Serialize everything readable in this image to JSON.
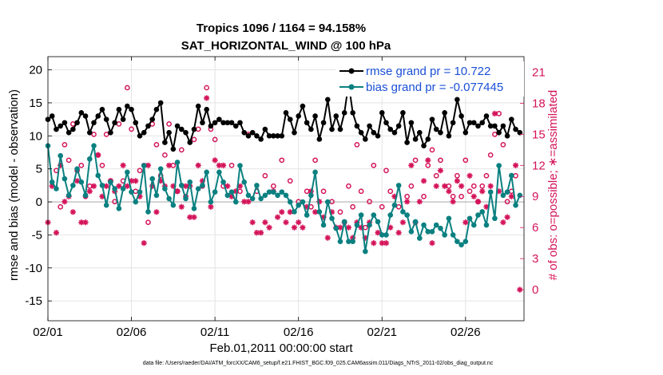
{
  "chart_data": {
    "type": "line",
    "title": "Tropics 1096 / 1164 = 94.158%",
    "subtitle": "SAT_HORIZONTAL_WIND @ 100 hPa",
    "xlabel": "Feb.01,2011 00:00:00 start",
    "ylabel": "rmse and bias (model - observation)",
    "y2label": "# of obs: o=possible; ∗=assimilated",
    "footnote": "data file: /Users/raeder/DAI/ATM_forcXX/CAM6_setup/f.e21.FHIST_BGC.f09_025.CAM6assim.011/Diags_NTrS_2011-02/obs_diag_output.nc",
    "xlim": [
      1,
      29.5
    ],
    "ylim": [
      -18,
      22
    ],
    "y2lim": [
      -3,
      22.5
    ],
    "x_ticks": [
      1,
      6,
      11,
      16,
      21,
      26
    ],
    "x_tick_labels": [
      "02/01",
      "02/06",
      "02/11",
      "02/16",
      "02/21",
      "02/26"
    ],
    "y_ticks": [
      -15,
      -10,
      -5,
      0,
      5,
      10,
      15,
      20
    ],
    "y2_ticks": [
      0,
      3,
      6,
      9,
      12,
      15,
      18,
      21
    ],
    "grid": true,
    "legend_location": "top-right",
    "colors": {
      "rmse": "#000000",
      "bias": "#0b8080",
      "obs": "#d4145a",
      "zero": "#b0b0b0",
      "legend_text": "#1a4fd6"
    },
    "x": [
      1.0,
      1.25,
      1.5,
      1.75,
      2.0,
      2.25,
      2.5,
      2.75,
      3.0,
      3.25,
      3.5,
      3.75,
      4.0,
      4.25,
      4.5,
      4.75,
      5.0,
      5.25,
      5.5,
      5.75,
      6.0,
      6.25,
      6.5,
      6.75,
      7.0,
      7.25,
      7.5,
      7.75,
      8.0,
      8.25,
      8.5,
      8.75,
      9.0,
      9.25,
      9.5,
      9.75,
      10.0,
      10.25,
      10.5,
      10.75,
      11.0,
      11.25,
      11.5,
      11.75,
      12.0,
      12.25,
      12.5,
      12.75,
      13.0,
      13.25,
      13.5,
      13.75,
      14.0,
      14.25,
      14.5,
      14.75,
      15.0,
      15.25,
      15.5,
      15.75,
      16.0,
      16.25,
      16.5,
      16.75,
      17.0,
      17.25,
      17.5,
      17.75,
      18.0,
      18.25,
      18.5,
      18.75,
      19.0,
      19.25,
      19.5,
      19.75,
      20.0,
      20.25,
      20.5,
      20.75,
      21.0,
      21.25,
      21.5,
      21.75,
      22.0,
      22.25,
      22.5,
      22.75,
      23.0,
      23.25,
      23.5,
      23.75,
      24.0,
      24.25,
      24.5,
      24.75,
      25.0,
      25.25,
      25.5,
      25.75,
      26.0,
      26.25,
      26.5,
      26.75,
      27.0,
      27.25,
      27.5,
      27.75,
      28.0,
      28.25,
      28.5,
      28.75,
      29.0,
      29.25
    ],
    "series": [
      {
        "name": "rmse grand pr = 10.722",
        "marker": "filled-circle",
        "values": [
          12.5,
          13.0,
          11.0,
          11.5,
          12.0,
          10.5,
          11.0,
          12.0,
          13.5,
          13.0,
          10.5,
          12.0,
          13.0,
          14.0,
          12.5,
          10.5,
          12.0,
          14.0,
          12.5,
          14.5,
          14.0,
          12.0,
          10.0,
          10.5,
          11.5,
          12.5,
          14.0,
          15.0,
          9.0,
          10.5,
          8.0,
          11.5,
          11.0,
          10.5,
          9.0,
          11.0,
          14.5,
          12.0,
          14.0,
          11.5,
          12.0,
          12.5,
          12.0,
          12.0,
          12.0,
          11.5,
          12.0,
          10.5,
          10.0,
          10.5,
          10.0,
          9.5,
          11.0,
          10.0,
          10.0,
          10.0,
          10.0,
          13.5,
          12.5,
          10.5,
          13.0,
          14.5,
          12.0,
          11.0,
          13.0,
          9.5,
          12.0,
          15.5,
          11.0,
          13.0,
          11.0,
          13.5,
          18.0,
          13.5,
          11.5,
          10.5,
          9.5,
          11.5,
          10.5,
          10.0,
          13.5,
          12.0,
          11.0,
          10.5,
          11.5,
          13.5,
          9.0,
          12.0,
          9.5,
          10.5,
          8.5,
          9.5,
          12.5,
          11.0,
          10.5,
          13.5,
          10.0,
          12.0,
          15.5,
          13.0,
          10.5,
          12.0,
          12.0,
          11.5,
          12.0,
          13.0,
          11.5,
          11.5,
          10.5,
          11.5,
          10.0,
          12.5,
          11.0,
          10.5
        ]
      },
      {
        "name": "bias grand pr = -0.077445",
        "marker": "filled-circle",
        "values": [
          8.5,
          3.0,
          2.0,
          7.0,
          3.5,
          1.0,
          2.5,
          5.0,
          3.0,
          1.0,
          6.5,
          8.5,
          4.0,
          2.5,
          -0.5,
          3.0,
          2.0,
          -1.0,
          2.0,
          4.5,
          1.5,
          0.0,
          1.5,
          5.5,
          -1.5,
          3.5,
          1.0,
          5.0,
          2.0,
          0.5,
          -0.5,
          6.0,
          2.5,
          0.5,
          3.0,
          -1.0,
          2.0,
          2.5,
          4.5,
          0.0,
          1.5,
          4.5,
          3.0,
          1.0,
          1.5,
          0.0,
          5.5,
          3.0,
          1.0,
          0.5,
          2.5,
          0.5,
          1.0,
          1.5,
          1.5,
          1.0,
          1.5,
          1.0,
          0.0,
          -1.5,
          -0.5,
          0.0,
          -2.0,
          1.0,
          4.5,
          -1.5,
          -3.5,
          0.0,
          -2.5,
          -4.0,
          -6.0,
          -3.0,
          -6.0,
          -6.0,
          -3.5,
          -2.0,
          -7.5,
          -3.5,
          -2.0,
          -3.0,
          -5.0,
          -5.0,
          -2.0,
          -0.5,
          2.5,
          -1.5,
          -2.0,
          -4.5,
          -3.0,
          -5.5,
          -3.5,
          -4.5,
          -4.5,
          -3.5,
          -4.0,
          -5.0,
          -2.5,
          -5.0,
          -6.0,
          -6.5,
          -6.0,
          -2.5,
          -3.5,
          -2.0,
          -1.5,
          -3.5,
          1.5,
          -2.5,
          5.5,
          1.0,
          1.5,
          4.0,
          -0.5,
          1.0
        ]
      }
    ],
    "obs_possible": {
      "marker": "open-circle",
      "axis": "right",
      "points": [
        [
          1.5,
          11.5
        ],
        [
          1.75,
          8.0
        ],
        [
          2.0,
          14.0
        ],
        [
          2.25,
          12.5
        ],
        [
          2.5,
          16.0
        ],
        [
          2.75,
          11.5
        ],
        [
          3.0,
          12.0
        ],
        [
          3.25,
          9.0
        ],
        [
          3.5,
          10.0
        ],
        [
          3.75,
          15.0
        ],
        [
          4.0,
          13.0
        ],
        [
          4.25,
          12.0
        ],
        [
          4.5,
          15.0
        ],
        [
          4.75,
          10.5
        ],
        [
          5.0,
          8.5
        ],
        [
          5.25,
          16.0
        ],
        [
          5.5,
          10.5
        ],
        [
          5.75,
          19.5
        ],
        [
          6.0,
          15.5
        ],
        [
          6.25,
          9.5
        ],
        [
          6.5,
          11.5
        ],
        [
          6.75,
          12.0
        ],
        [
          7.0,
          6.5
        ],
        [
          7.25,
          16.0
        ],
        [
          7.5,
          14.0
        ],
        [
          7.75,
          11.0
        ],
        [
          8.0,
          13.0
        ],
        [
          8.25,
          16.0
        ],
        [
          8.5,
          12.0
        ],
        [
          8.75,
          9.5
        ],
        [
          9.0,
          13.5
        ],
        [
          9.25,
          9.0
        ],
        [
          9.5,
          10.0
        ],
        [
          9.75,
          14.5
        ],
        [
          10.0,
          15.5
        ],
        [
          10.25,
          10.0
        ],
        [
          10.5,
          19.5
        ],
        [
          10.75,
          15.5
        ],
        [
          11.0,
          14.5
        ],
        [
          11.5,
          10.0
        ],
        [
          12.0,
          12.0
        ],
        [
          12.5,
          9.5
        ],
        [
          13.0,
          15.0
        ],
        [
          13.5,
          9.5
        ],
        [
          14.0,
          11.0
        ],
        [
          14.5,
          10.0
        ],
        [
          15.0,
          12.5
        ],
        [
          15.5,
          10.5
        ],
        [
          16.0,
          8.5
        ],
        [
          16.5,
          9.5
        ],
        [
          16.75,
          8.0
        ],
        [
          17.0,
          12.5
        ],
        [
          17.5,
          9.5
        ],
        [
          18.0,
          8.5
        ],
        [
          18.5,
          7.5
        ],
        [
          19.0,
          10.0
        ],
        [
          19.25,
          8.0
        ],
        [
          19.5,
          14.0
        ],
        [
          19.75,
          9.5
        ],
        [
          20.0,
          6.0
        ],
        [
          20.25,
          8.5
        ],
        [
          20.5,
          12.0
        ],
        [
          21.0,
          8.0
        ],
        [
          21.25,
          11.5
        ],
        [
          21.5,
          9.5
        ],
        [
          22.0,
          8.0
        ],
        [
          22.5,
          9.0
        ],
        [
          22.75,
          10.0
        ],
        [
          23.0,
          12.5
        ],
        [
          23.5,
          9.0
        ],
        [
          23.75,
          12.0
        ],
        [
          24.0,
          13.5
        ],
        [
          24.25,
          11.0
        ],
        [
          24.5,
          12.5
        ],
        [
          25.0,
          10.0
        ],
        [
          25.25,
          9.0
        ],
        [
          25.5,
          11.0
        ],
        [
          25.75,
          9.0
        ],
        [
          26.0,
          12.5
        ],
        [
          26.25,
          9.5
        ],
        [
          26.5,
          10.0
        ],
        [
          26.75,
          8.5
        ],
        [
          27.0,
          10.0
        ],
        [
          27.25,
          11.0
        ],
        [
          27.5,
          13.0
        ],
        [
          27.75,
          15.0
        ],
        [
          28.0,
          17.0
        ],
        [
          28.25,
          14.0
        ],
        [
          28.5,
          8.5
        ],
        [
          28.75,
          9.5
        ],
        [
          29.0,
          11.0
        ]
      ]
    },
    "obs_assimilated": {
      "marker": "asterisk",
      "axis": "right",
      "points": [
        [
          1.0,
          6.5
        ],
        [
          1.25,
          10.0
        ],
        [
          1.5,
          5.5
        ],
        [
          1.75,
          12.0
        ],
        [
          2.0,
          8.5
        ],
        [
          2.25,
          9.0
        ],
        [
          2.5,
          7.5
        ],
        [
          2.75,
          10.5
        ],
        [
          3.0,
          6.5
        ],
        [
          3.25,
          6.5
        ],
        [
          3.5,
          9.5
        ],
        [
          3.75,
          10.0
        ],
        [
          4.0,
          13.0
        ],
        [
          4.25,
          9.0
        ],
        [
          4.5,
          10.0
        ],
        [
          4.75,
          10.5
        ],
        [
          5.0,
          9.5
        ],
        [
          5.25,
          10.0
        ],
        [
          5.5,
          12.0
        ],
        [
          5.75,
          10.0
        ],
        [
          6.0,
          10.5
        ],
        [
          6.25,
          10.5
        ],
        [
          6.5,
          9.0
        ],
        [
          6.75,
          4.5
        ],
        [
          7.0,
          12.0
        ],
        [
          7.25,
          10.0
        ],
        [
          7.5,
          7.5
        ],
        [
          7.75,
          10.5
        ],
        [
          8.0,
          10.0
        ],
        [
          8.25,
          12.0
        ],
        [
          8.5,
          10.0
        ],
        [
          8.75,
          9.5
        ],
        [
          9.0,
          8.0
        ],
        [
          9.25,
          10.0
        ],
        [
          9.5,
          7.0
        ],
        [
          9.75,
          7.0
        ],
        [
          10.0,
          12.0
        ],
        [
          10.25,
          10.5
        ],
        [
          10.5,
          18.5
        ],
        [
          10.75,
          8.0
        ],
        [
          11.0,
          12.5
        ],
        [
          11.25,
          12.0
        ],
        [
          11.5,
          12.0
        ],
        [
          11.75,
          10.0
        ],
        [
          12.0,
          9.0
        ],
        [
          12.25,
          9.5
        ],
        [
          12.5,
          10.0
        ],
        [
          12.75,
          8.5
        ],
        [
          13.0,
          8.5
        ],
        [
          13.25,
          6.5
        ],
        [
          13.5,
          5.5
        ],
        [
          13.75,
          5.5
        ],
        [
          14.0,
          6.5
        ],
        [
          14.25,
          6.0
        ],
        [
          14.5,
          9.5
        ],
        [
          14.75,
          7.0
        ],
        [
          15.0,
          7.5
        ],
        [
          15.25,
          6.5
        ],
        [
          15.5,
          7.5
        ],
        [
          15.75,
          6.0
        ],
        [
          16.0,
          6.5
        ],
        [
          16.25,
          6.0
        ],
        [
          16.5,
          8.0
        ],
        [
          16.75,
          9.5
        ],
        [
          17.0,
          7.5
        ],
        [
          17.25,
          8.5
        ],
        [
          17.5,
          7.0
        ],
        [
          17.75,
          5.0
        ],
        [
          18.0,
          7.5
        ],
        [
          18.25,
          6.0
        ],
        [
          18.5,
          6.0
        ],
        [
          18.75,
          6.5
        ],
        [
          19.0,
          6.0
        ],
        [
          19.25,
          5.0
        ],
        [
          19.5,
          6.5
        ],
        [
          19.75,
          6.0
        ],
        [
          20.0,
          5.0
        ],
        [
          20.25,
          6.5
        ],
        [
          20.5,
          4.5
        ],
        [
          20.75,
          5.5
        ],
        [
          21.0,
          4.5
        ],
        [
          21.25,
          4.5
        ],
        [
          21.5,
          6.0
        ],
        [
          21.75,
          9.0
        ],
        [
          22.0,
          5.5
        ],
        [
          22.25,
          6.5
        ],
        [
          22.5,
          8.5
        ],
        [
          22.75,
          12.0
        ],
        [
          23.0,
          6.5
        ],
        [
          23.25,
          8.5
        ],
        [
          23.5,
          10.5
        ],
        [
          23.75,
          12.5
        ],
        [
          24.0,
          4.5
        ],
        [
          24.25,
          10.0
        ],
        [
          24.5,
          11.5
        ],
        [
          24.75,
          10.0
        ],
        [
          25.0,
          9.5
        ],
        [
          25.25,
          8.5
        ],
        [
          25.5,
          10.5
        ],
        [
          25.75,
          10.0
        ],
        [
          26.0,
          6.5
        ],
        [
          26.25,
          11.0
        ],
        [
          26.5,
          9.0
        ],
        [
          26.75,
          8.5
        ],
        [
          27.0,
          9.5
        ],
        [
          27.25,
          8.0
        ],
        [
          27.5,
          10.0
        ],
        [
          27.75,
          17.0
        ],
        [
          28.0,
          9.5
        ],
        [
          28.25,
          6.5
        ],
        [
          28.5,
          7.0
        ],
        [
          28.75,
          9.0
        ],
        [
          29.0,
          12.0
        ],
        [
          29.25,
          0.0
        ]
      ]
    }
  }
}
